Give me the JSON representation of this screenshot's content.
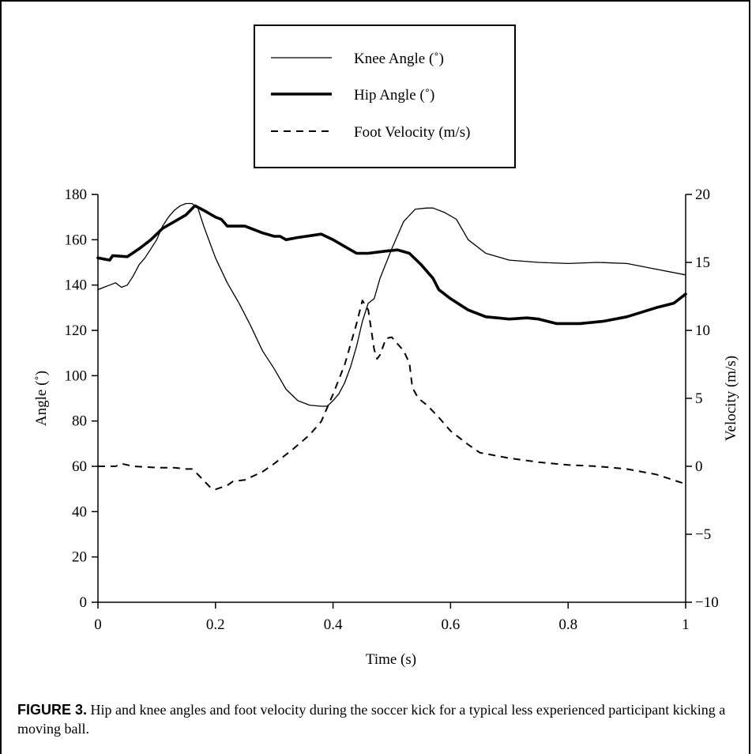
{
  "figure": {
    "caption_label": "FIGURE 3.",
    "caption_text": " Hip and knee angles and foot velocity during the soccer kick for a typical less experienced participant kicking a moving ball."
  },
  "chart_data": {
    "type": "line",
    "xlabel": "Time (s)",
    "ylabel": "Angle (˚)",
    "y2label": "Velocity (m/s)",
    "xlim": [
      0,
      1
    ],
    "ylim": [
      0,
      180
    ],
    "y2lim": [
      -10,
      20
    ],
    "x_ticks": [
      "0",
      "0.2",
      "0.4",
      "0.6",
      "0.8",
      "1"
    ],
    "y_ticks": [
      "0",
      "20",
      "40",
      "60",
      "80",
      "100",
      "120",
      "140",
      "160",
      "180"
    ],
    "y2_ticks": [
      "−10",
      "−5",
      "0",
      "5",
      "10",
      "15",
      "20"
    ],
    "grid": false,
    "legend_position": "top-center",
    "series": [
      {
        "name": "Knee Angle (˚)",
        "axis": "left",
        "style": "thin",
        "points": [
          [
            0,
            138
          ],
          [
            0.02,
            140
          ],
          [
            0.03,
            141
          ],
          [
            0.04,
            139
          ],
          [
            0.05,
            140
          ],
          [
            0.06,
            144
          ],
          [
            0.07,
            149
          ],
          [
            0.08,
            152
          ],
          [
            0.09,
            156
          ],
          [
            0.1,
            160
          ],
          [
            0.11,
            166
          ],
          [
            0.12,
            170
          ],
          [
            0.13,
            173
          ],
          [
            0.14,
            175
          ],
          [
            0.15,
            176
          ],
          [
            0.16,
            176
          ],
          [
            0.17,
            174
          ],
          [
            0.18,
            166
          ],
          [
            0.2,
            152
          ],
          [
            0.22,
            141
          ],
          [
            0.24,
            132
          ],
          [
            0.26,
            122
          ],
          [
            0.28,
            111
          ],
          [
            0.3,
            103
          ],
          [
            0.32,
            94
          ],
          [
            0.34,
            89
          ],
          [
            0.36,
            87
          ],
          [
            0.38,
            86.5
          ],
          [
            0.39,
            86.5
          ],
          [
            0.4,
            89
          ],
          [
            0.41,
            92
          ],
          [
            0.42,
            97
          ],
          [
            0.43,
            104
          ],
          [
            0.44,
            113
          ],
          [
            0.45,
            124
          ],
          [
            0.46,
            132
          ],
          [
            0.47,
            134
          ],
          [
            0.48,
            143
          ],
          [
            0.5,
            156
          ],
          [
            0.52,
            168
          ],
          [
            0.54,
            173.5
          ],
          [
            0.56,
            174
          ],
          [
            0.57,
            174
          ],
          [
            0.59,
            172
          ],
          [
            0.61,
            169
          ],
          [
            0.63,
            160
          ],
          [
            0.66,
            154
          ],
          [
            0.7,
            151
          ],
          [
            0.75,
            150
          ],
          [
            0.8,
            149.5
          ],
          [
            0.85,
            150
          ],
          [
            0.9,
            149.5
          ],
          [
            0.95,
            147
          ],
          [
            1,
            144.5
          ]
        ]
      },
      {
        "name": "Hip Angle (˚)",
        "axis": "left",
        "style": "thick",
        "points": [
          [
            0,
            152
          ],
          [
            0.02,
            151
          ],
          [
            0.025,
            153
          ],
          [
            0.05,
            152.5
          ],
          [
            0.07,
            156
          ],
          [
            0.09,
            160
          ],
          [
            0.11,
            165
          ],
          [
            0.13,
            168
          ],
          [
            0.15,
            171
          ],
          [
            0.165,
            175
          ],
          [
            0.18,
            173
          ],
          [
            0.2,
            170
          ],
          [
            0.21,
            169
          ],
          [
            0.22,
            166
          ],
          [
            0.25,
            166
          ],
          [
            0.28,
            163
          ],
          [
            0.3,
            161.5
          ],
          [
            0.31,
            161.5
          ],
          [
            0.32,
            160
          ],
          [
            0.34,
            161
          ],
          [
            0.38,
            162.5
          ],
          [
            0.4,
            160
          ],
          [
            0.42,
            157
          ],
          [
            0.44,
            154
          ],
          [
            0.46,
            154
          ],
          [
            0.49,
            155
          ],
          [
            0.51,
            155.5
          ],
          [
            0.53,
            154
          ],
          [
            0.55,
            149
          ],
          [
            0.57,
            143
          ],
          [
            0.58,
            138
          ],
          [
            0.6,
            134
          ],
          [
            0.63,
            129
          ],
          [
            0.66,
            126
          ],
          [
            0.7,
            125
          ],
          [
            0.73,
            125.5
          ],
          [
            0.75,
            125
          ],
          [
            0.78,
            123
          ],
          [
            0.82,
            123
          ],
          [
            0.86,
            124
          ],
          [
            0.9,
            126
          ],
          [
            0.95,
            130
          ],
          [
            0.98,
            132
          ],
          [
            1,
            136
          ]
        ]
      },
      {
        "name": "Foot Velocity (m/s)",
        "axis": "right",
        "style": "dashed",
        "points": [
          [
            0,
            0
          ],
          [
            0.03,
            0
          ],
          [
            0.04,
            0.2
          ],
          [
            0.06,
            0
          ],
          [
            0.1,
            -0.1
          ],
          [
            0.13,
            -0.1
          ],
          [
            0.15,
            -0.2
          ],
          [
            0.16,
            -0.2
          ],
          [
            0.17,
            -0.6
          ],
          [
            0.19,
            -1.5
          ],
          [
            0.2,
            -1.7
          ],
          [
            0.22,
            -1.4
          ],
          [
            0.23,
            -1.1
          ],
          [
            0.25,
            -1
          ],
          [
            0.28,
            -0.4
          ],
          [
            0.3,
            0.2
          ],
          [
            0.33,
            1.2
          ],
          [
            0.36,
            2.3
          ],
          [
            0.38,
            3.3
          ],
          [
            0.4,
            5.3
          ],
          [
            0.42,
            7.5
          ],
          [
            0.44,
            10.5
          ],
          [
            0.45,
            12.2
          ],
          [
            0.46,
            11.5
          ],
          [
            0.47,
            8.6
          ],
          [
            0.475,
            7.9
          ],
          [
            0.48,
            8.2
          ],
          [
            0.49,
            9.4
          ],
          [
            0.5,
            9.5
          ],
          [
            0.51,
            9
          ],
          [
            0.52,
            8.5
          ],
          [
            0.53,
            7.6
          ],
          [
            0.535,
            5.8
          ],
          [
            0.545,
            5
          ],
          [
            0.56,
            4.5
          ],
          [
            0.58,
            3.6
          ],
          [
            0.6,
            2.6
          ],
          [
            0.63,
            1.6
          ],
          [
            0.65,
            1
          ],
          [
            0.7,
            0.6
          ],
          [
            0.75,
            0.3
          ],
          [
            0.8,
            0.1
          ],
          [
            0.85,
            0
          ],
          [
            0.9,
            -0.2
          ],
          [
            0.95,
            -0.6
          ],
          [
            1,
            -1.3
          ]
        ]
      }
    ]
  }
}
